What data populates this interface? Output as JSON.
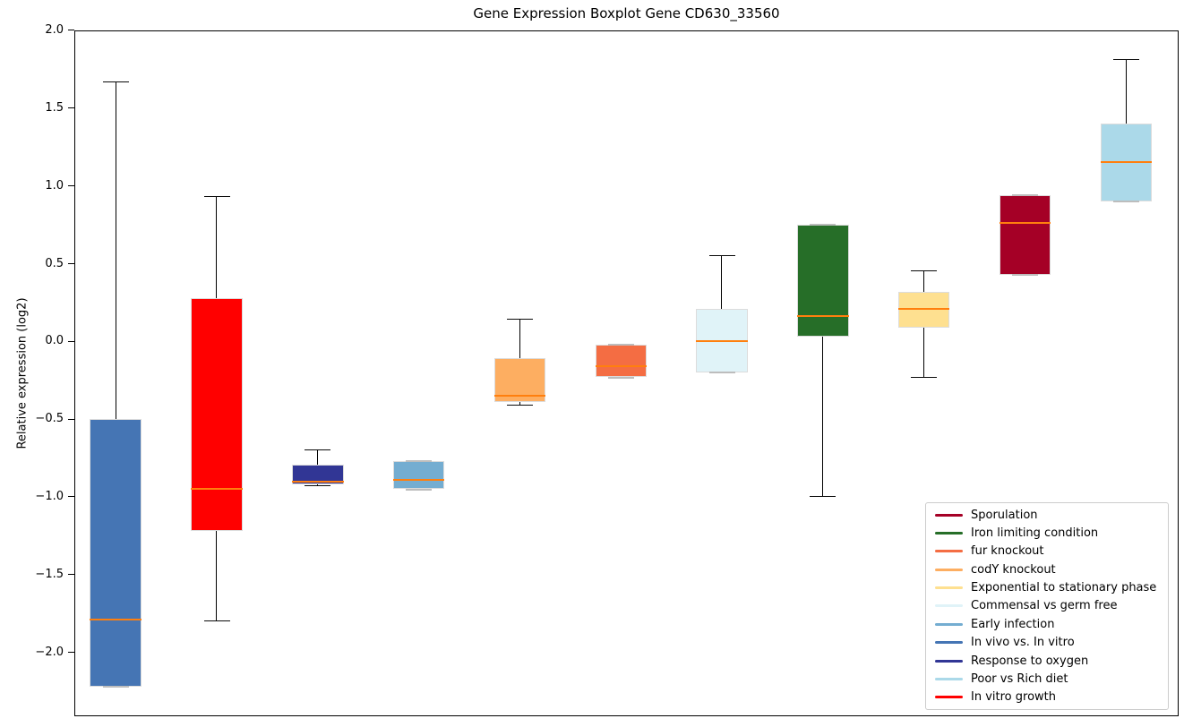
{
  "chart_data": {
    "type": "boxplot",
    "title": "Gene Expression Boxplot Gene CD630_33560",
    "ylabel": "Relative expression (log2)",
    "xlabel": "",
    "grid": false,
    "ylim": [
      -2.41,
      2.0
    ],
    "xlim": [
      0.59,
      11.52
    ],
    "box_width": 0.51,
    "yticks": [
      {
        "value": 2.0,
        "label": "2.0"
      },
      {
        "value": 1.5,
        "label": "1.5"
      },
      {
        "value": 1.0,
        "label": "1.0"
      },
      {
        "value": 0.5,
        "label": "0.5"
      },
      {
        "value": 0.0,
        "label": "0.0"
      },
      {
        "value": -0.5,
        "label": "−0.5"
      },
      {
        "value": -1.0,
        "label": "−1.0"
      },
      {
        "value": -1.5,
        "label": "−1.5"
      },
      {
        "value": -2.0,
        "label": "−2.0"
      }
    ],
    "style_colors": {
      "median": "#ff7f0e",
      "whisker": "#000000",
      "box_edge": "#dcdcdc",
      "zero_length_cap": "#bdbdbd"
    },
    "boxes": [
      {
        "position": 1,
        "condition": "In vivo vs. In vitro",
        "color": "#4575b4",
        "whislo": -2.22,
        "q1": -2.22,
        "med": -1.79,
        "q3": -0.5,
        "whishi": 1.67
      },
      {
        "position": 2,
        "condition": "In vitro growth",
        "color": "#ff0000",
        "whislo": -1.8,
        "q1": -1.22,
        "med": -0.95,
        "q3": 0.28,
        "whishi": 0.93
      },
      {
        "position": 3,
        "condition": "Response to oxygen",
        "color": "#313695",
        "whislo": -0.93,
        "q1": -0.92,
        "med": -0.9,
        "q3": -0.79,
        "whishi": -0.7
      },
      {
        "position": 4,
        "condition": "Early infection",
        "color": "#74add1",
        "whislo": -0.95,
        "q1": -0.95,
        "med": -0.89,
        "q3": -0.77,
        "whishi": -0.77
      },
      {
        "position": 5,
        "condition": "codY knockout",
        "color": "#fdae61",
        "whislo": -0.41,
        "q1": -0.39,
        "med": -0.35,
        "q3": -0.11,
        "whishi": 0.14
      },
      {
        "position": 6,
        "condition": "fur knockout",
        "color": "#f46d43",
        "whislo": -0.23,
        "q1": -0.23,
        "med": -0.16,
        "q3": -0.02,
        "whishi": -0.02
      },
      {
        "position": 7,
        "condition": "Commensal vs germ free",
        "color": "#e0f3f8",
        "whislo": -0.2,
        "q1": -0.2,
        "med": 0.0,
        "q3": 0.21,
        "whishi": 0.55
      },
      {
        "position": 8,
        "condition": "Iron limiting condition",
        "color": "#266e28",
        "whislo": -1.0,
        "q1": 0.03,
        "med": 0.16,
        "q3": 0.75,
        "whishi": 0.75
      },
      {
        "position": 9,
        "condition": "Exponential to stationary phase",
        "color": "#fee090",
        "whislo": -0.23,
        "q1": 0.09,
        "med": 0.21,
        "q3": 0.32,
        "whishi": 0.45
      },
      {
        "position": 10,
        "condition": "Sporulation",
        "color": "#a50026",
        "whislo": 0.43,
        "q1": 0.43,
        "med": 0.76,
        "q3": 0.94,
        "whishi": 0.94
      },
      {
        "position": 11,
        "condition": "Poor vs Rich diet",
        "color": "#abd9e9",
        "whislo": 0.9,
        "q1": 0.9,
        "med": 1.15,
        "q3": 1.4,
        "whishi": 1.81
      }
    ],
    "legend": {
      "location": "lower right",
      "entries": [
        {
          "label": "Sporulation",
          "color": "#a50026"
        },
        {
          "label": "Iron limiting condition",
          "color": "#266e28"
        },
        {
          "label": "fur knockout",
          "color": "#f46d43"
        },
        {
          "label": "codY knockout",
          "color": "#fdae61"
        },
        {
          "label": "Exponential to stationary phase",
          "color": "#fee090"
        },
        {
          "label": "Commensal vs germ free",
          "color": "#e0f3f8"
        },
        {
          "label": "Early infection",
          "color": "#74add1"
        },
        {
          "label": "In vivo vs. In vitro",
          "color": "#4575b4"
        },
        {
          "label": "Response to oxygen",
          "color": "#313695"
        },
        {
          "label": "Poor vs Rich diet",
          "color": "#abd9e9"
        },
        {
          "label": "In vitro growth",
          "color": "#ff0000"
        }
      ]
    }
  }
}
